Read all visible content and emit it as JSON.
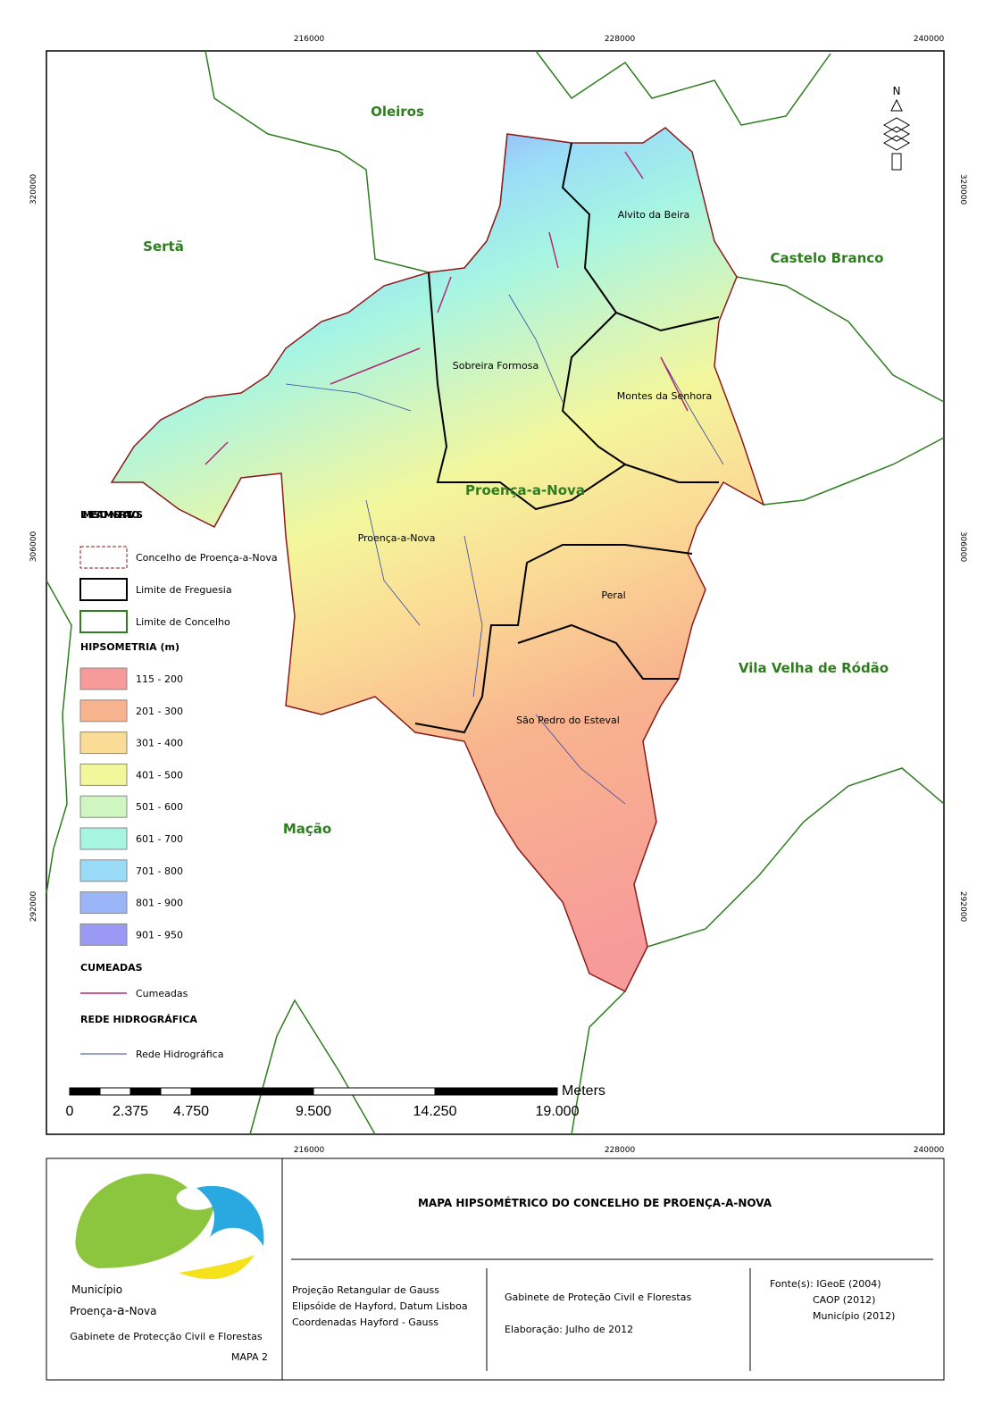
{
  "map": {
    "grid_labels": {
      "x": [
        "216000",
        "228000",
        "240000"
      ],
      "y": [
        "320000",
        "306000",
        "292000"
      ]
    },
    "neighbors": [
      "Oleiros",
      "Sertã",
      "Castelo Branco",
      "Vila Velha de Ródão",
      "Mação"
    ],
    "county_label": "Proença-a-Nova",
    "parishes": [
      "Alvito da Beira",
      "Sobreira Formosa",
      "Montes da Senhora",
      "Proença-a-Nova",
      "Peral",
      "São Pedro do Esteval"
    ],
    "north": "N"
  },
  "legend": {
    "admin": {
      "title": "LIMITES ADMINISTRATIVOS",
      "items": [
        "Concelho de Proença-a-Nova",
        "Limite de Freguesia",
        "Limite de Concelho"
      ]
    },
    "hypsometry": {
      "title": "HIPSOMETRIA (m)",
      "items": [
        {
          "label": "115 - 200",
          "color": "#f79a9a"
        },
        {
          "label": "201 - 300",
          "color": "#f8b48e"
        },
        {
          "label": "301 - 400",
          "color": "#fbdc96"
        },
        {
          "label": "401 - 500",
          "color": "#f3f79c"
        },
        {
          "label": "501 - 600",
          "color": "#cff5c0"
        },
        {
          "label": "601 - 700",
          "color": "#a6f5e3"
        },
        {
          "label": "701 - 800",
          "color": "#9adcf8"
        },
        {
          "label": "801 - 900",
          "color": "#9ab5f8"
        },
        {
          "label": "901 - 950",
          "color": "#9a9af5"
        }
      ]
    },
    "ridges": {
      "title": "CUMEADAS",
      "item": "Cumeadas"
    },
    "hydro": {
      "title": "REDE HIDROGRÁFICA",
      "item": "Rede Hidrográfica"
    }
  },
  "scale_bar": {
    "unit": "Meters",
    "labels": [
      "0",
      "2.375",
      "4.750",
      "9.500",
      "14.250",
      "19.000"
    ]
  },
  "footer": {
    "title": "MAPA HIPSOMÉTRICO DO CONCELHO DE PROENÇA-A-NOVA",
    "logo": {
      "line1": "Município",
      "line2a": "Proença",
      "line2b": "-a-",
      "line2c": "Nova",
      "office": "Gabinete de Protecção Civil e Florestas",
      "map_no": "MAPA 2"
    },
    "projection": [
      "Projeção Retangular de Gauss",
      "Elipsóide de Hayford, Datum Lisboa",
      "Coordenadas Hayford - Gauss"
    ],
    "office": "Gabinete de Proteção Civil e Florestas",
    "date": "Elaboração: Julho de 2012",
    "sources": [
      "Fonte(s): IGeoE (2004)",
      "CAOP (2012)",
      "Município (2012)"
    ]
  }
}
